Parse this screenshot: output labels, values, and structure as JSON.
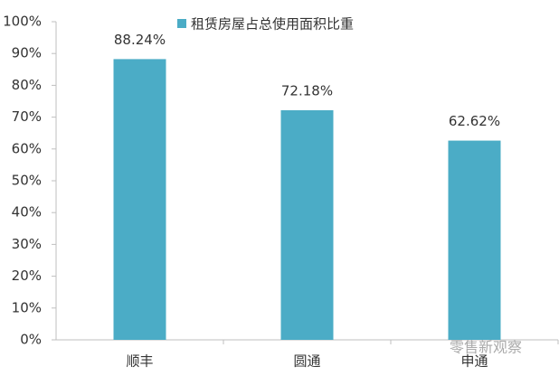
{
  "chart_data": {
    "type": "bar",
    "legend": "租赁房屋占总使用面积比重",
    "categories": [
      "顺丰",
      "圆通",
      "申通"
    ],
    "values": [
      88.24,
      72.18,
      62.62
    ],
    "value_labels": [
      "88.24%",
      "72.18%",
      "62.62%"
    ],
    "color": "#4bacc6",
    "ylim": [
      0,
      100
    ],
    "yticks": [
      {
        "value": 0,
        "label": "0%"
      },
      {
        "value": 10,
        "label": "10%"
      },
      {
        "value": 20,
        "label": "20%"
      },
      {
        "value": 30,
        "label": "30%"
      },
      {
        "value": 40,
        "label": "40%"
      },
      {
        "value": 50,
        "label": "50%"
      },
      {
        "value": 60,
        "label": "60%"
      },
      {
        "value": 70,
        "label": "70%"
      },
      {
        "value": 80,
        "label": "80%"
      },
      {
        "value": 90,
        "label": "90%"
      },
      {
        "value": 100,
        "label": "100%"
      }
    ],
    "grid": false,
    "watermark": "零售新观察"
  }
}
